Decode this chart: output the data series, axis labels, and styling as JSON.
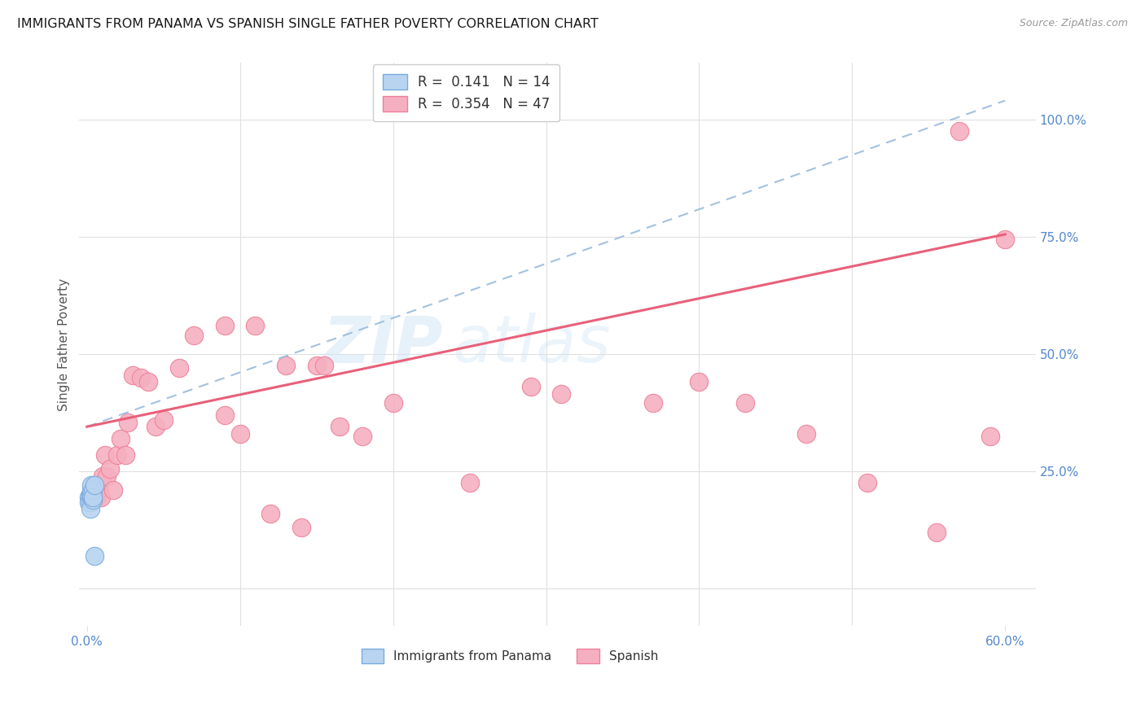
{
  "title": "IMMIGRANTS FROM PANAMA VS SPANISH SINGLE FATHER POVERTY CORRELATION CHART",
  "source_text": "Source: ZipAtlas.com",
  "ylabel": "Single Father Poverty",
  "xlim": [
    -0.005,
    0.62
  ],
  "ylim": [
    -0.08,
    1.12
  ],
  "x_ticks": [
    0.0,
    0.6
  ],
  "x_tick_labels": [
    "0.0%",
    "60.0%"
  ],
  "y_ticks": [
    0.0,
    0.25,
    0.5,
    0.75,
    1.0
  ],
  "y_tick_labels_right": [
    "",
    "25.0%",
    "50.0%",
    "75.0%",
    "100.0%"
  ],
  "watermark_part1": "ZIP",
  "watermark_part2": "atlas",
  "legend_panama_r": "0.141",
  "legend_panama_n": "14",
  "legend_spanish_r": "0.354",
  "legend_spanish_n": "47",
  "panama_fill": "#b8d4f0",
  "panama_edge": "#7aaadd",
  "spanish_fill": "#f5b0c0",
  "spanish_edge": "#ee8098",
  "panama_trend_color": "#99bbdd",
  "spanish_trend_color": "#e8607a",
  "bg_color": "#ffffff",
  "grid_color": "#e0e0e0",
  "title_color": "#1a1a1a",
  "axis_tick_color": "#5588cc",
  "panama_scatter_x": [
    0.001,
    0.001,
    0.002,
    0.002,
    0.002,
    0.003,
    0.003,
    0.003,
    0.003,
    0.004,
    0.004,
    0.004,
    0.005,
    0.005
  ],
  "panama_scatter_y": [
    0.195,
    0.185,
    0.2,
    0.185,
    0.17,
    0.195,
    0.2,
    0.21,
    0.22,
    0.19,
    0.21,
    0.195,
    0.22,
    0.07
  ],
  "spanish_scatter_x": [
    0.003,
    0.004,
    0.005,
    0.006,
    0.007,
    0.008,
    0.009,
    0.01,
    0.012,
    0.013,
    0.015,
    0.017,
    0.02,
    0.022,
    0.025,
    0.027,
    0.03,
    0.035,
    0.04,
    0.045,
    0.05,
    0.06,
    0.07,
    0.09,
    0.11,
    0.13,
    0.15,
    0.165,
    0.2,
    0.25,
    0.29,
    0.31,
    0.37,
    0.4,
    0.43,
    0.47,
    0.51,
    0.555,
    0.57,
    0.59,
    0.6,
    0.155,
    0.18,
    0.09,
    0.1,
    0.12,
    0.14
  ],
  "spanish_scatter_y": [
    0.195,
    0.2,
    0.195,
    0.195,
    0.215,
    0.21,
    0.195,
    0.24,
    0.285,
    0.24,
    0.255,
    0.21,
    0.285,
    0.32,
    0.285,
    0.355,
    0.455,
    0.45,
    0.44,
    0.345,
    0.36,
    0.47,
    0.54,
    0.56,
    0.56,
    0.475,
    0.475,
    0.345,
    0.395,
    0.225,
    0.43,
    0.415,
    0.395,
    0.44,
    0.395,
    0.33,
    0.225,
    0.12,
    0.975,
    0.325,
    0.745,
    0.475,
    0.325,
    0.37,
    0.33,
    0.16,
    0.13
  ],
  "pan_trend_x": [
    0.0,
    0.6
  ],
  "pan_trend_y": [
    0.345,
    1.04
  ],
  "sp_trend_x": [
    0.0,
    0.6
  ],
  "sp_trend_y": [
    0.345,
    0.755
  ],
  "title_fontsize": 11.5,
  "tick_fontsize": 11,
  "ylabel_fontsize": 11,
  "legend_fontsize": 12
}
